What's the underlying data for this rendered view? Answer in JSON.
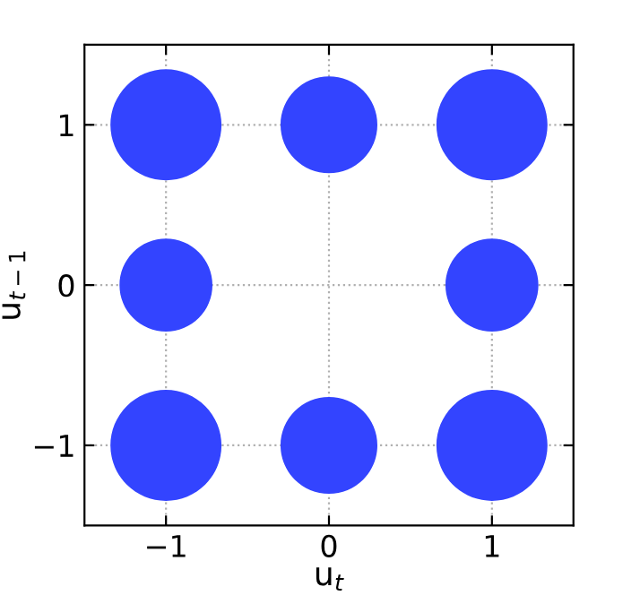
{
  "chart_data": {
    "type": "bubble",
    "xlabel": "u$_{t}$",
    "ylabel": "u$_{t−1}$",
    "x": [
      -1,
      0,
      1,
      -1,
      1,
      -1,
      0,
      1
    ],
    "series": [
      {
        "color": "#3344ff",
        "values": [
          1,
          1,
          1,
          0,
          0,
          -1,
          -1,
          -1
        ],
        "sizes": [
          1,
          0.76,
          1,
          0.7,
          0.7,
          1,
          0.76,
          1
        ]
      }
    ],
    "xlim": [
      -1.5,
      1.5
    ],
    "ylim": [
      -1.5,
      1.5
    ],
    "xticks": [
      {
        "value": -1,
        "label": "−1"
      },
      0,
      1
    ],
    "yticks": [
      {
        "value": -1,
        "label": "−1"
      },
      0,
      1
    ],
    "grid": true
  }
}
